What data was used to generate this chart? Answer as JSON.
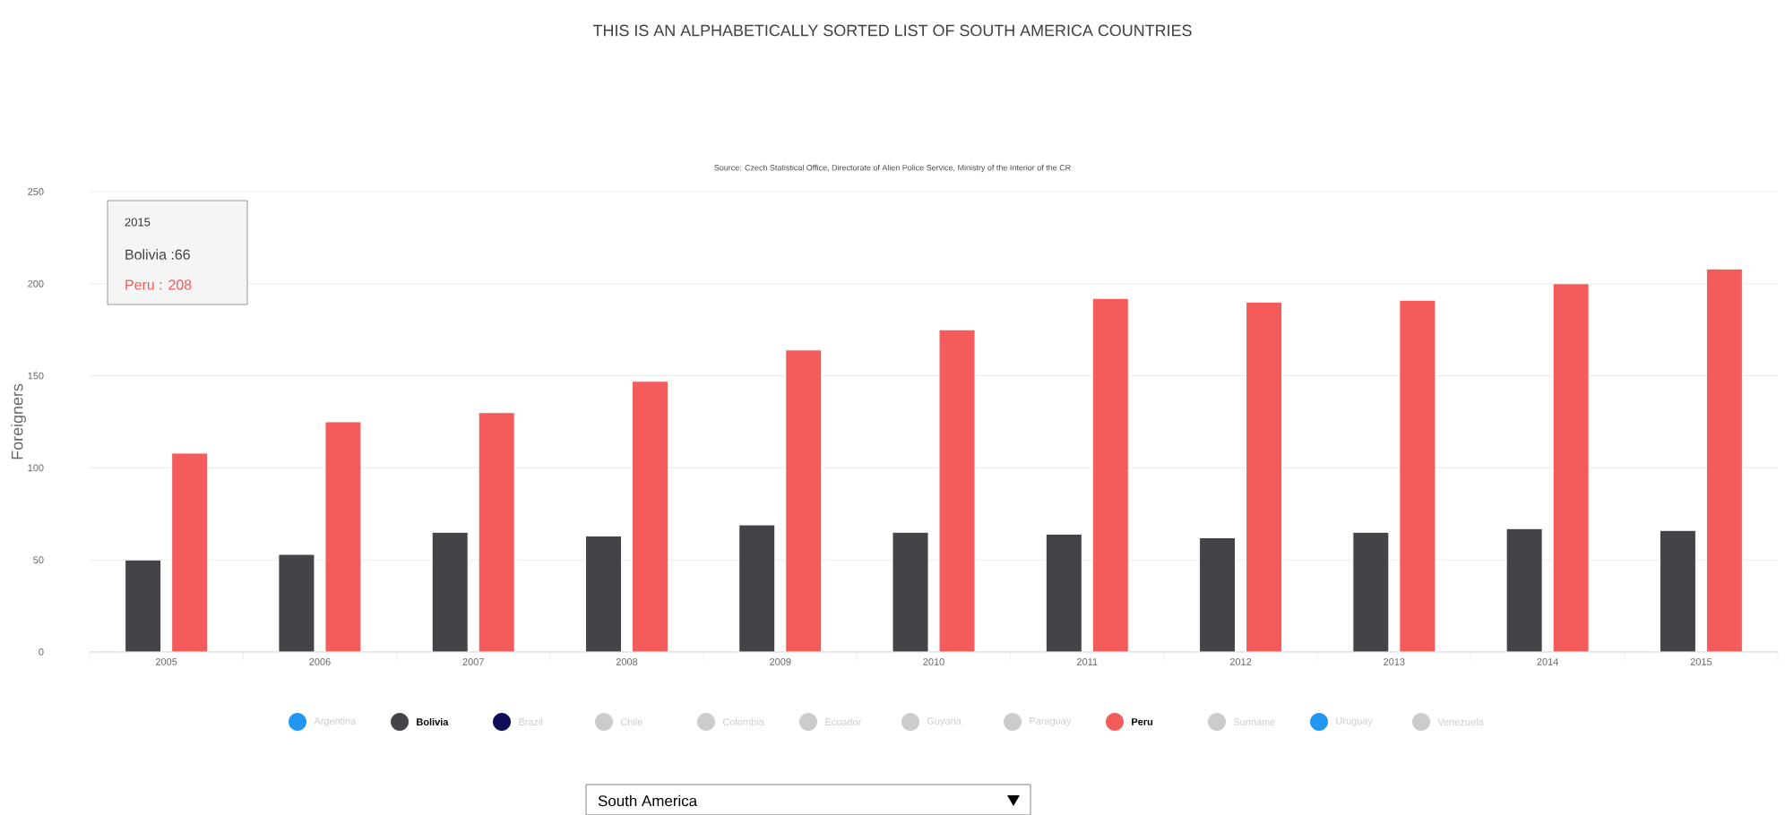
{
  "chart_data": {
    "type": "bar",
    "title": "THIS IS AN ALPHABETICALLY SORTED LIST OF SOUTH AMERICA COUNTRIES",
    "ylabel": "Foreigners",
    "categories": [
      "2005",
      "2006",
      "2007",
      "2008",
      "2009",
      "2010",
      "2011",
      "2012",
      "2013",
      "2014",
      "2015"
    ],
    "series": [
      {
        "name": "Argentina",
        "color": "#2196f3",
        "values": [
          null,
          null,
          null,
          null,
          null,
          null,
          null,
          null,
          null,
          null,
          null
        ]
      },
      {
        "name": "Bolivia",
        "color": "#434348",
        "values": [
          50,
          53,
          65,
          63,
          69,
          65,
          64,
          62,
          65,
          67,
          66
        ]
      },
      {
        "name": "Brazil",
        "color": "#0d0d5a",
        "values": [
          null,
          null,
          null,
          null,
          null,
          null,
          null,
          null,
          null,
          null,
          null
        ]
      },
      {
        "name": "Chile",
        "color": "#cccccc",
        "values": [
          null,
          null,
          null,
          null,
          null,
          null,
          null,
          null,
          null,
          null,
          null
        ]
      },
      {
        "name": "Colombia",
        "color": "#cccccc",
        "values": [
          null,
          null,
          null,
          null,
          null,
          null,
          null,
          null,
          null,
          null,
          null
        ]
      },
      {
        "name": "Ecuador",
        "color": "#cccccc",
        "values": [
          null,
          null,
          null,
          null,
          null,
          null,
          null,
          null,
          null,
          null,
          null
        ]
      },
      {
        "name": "Guyana",
        "color": "#cccccc",
        "values": [
          null,
          null,
          null,
          null,
          null,
          null,
          null,
          null,
          null,
          null,
          null
        ]
      },
      {
        "name": "Paraguay",
        "color": "#cccccc",
        "values": [
          null,
          null,
          null,
          null,
          null,
          null,
          null,
          null,
          null,
          null,
          null
        ]
      },
      {
        "name": "Peru",
        "color": "#f45b5b",
        "values": [
          108,
          125,
          130,
          147,
          164,
          175,
          192,
          190,
          191,
          200,
          208
        ]
      },
      {
        "name": "Suriname",
        "color": "#cccccc",
        "values": [
          null,
          null,
          null,
          null,
          null,
          null,
          null,
          null,
          null,
          null,
          null
        ]
      },
      {
        "name": "Uruguay",
        "color": "#2196f3",
        "values": [
          null,
          null,
          null,
          null,
          null,
          null,
          null,
          null,
          null,
          null,
          null
        ]
      },
      {
        "name": "Venezuela",
        "color": "#cccccc",
        "values": [
          null,
          null,
          null,
          null,
          null,
          null,
          null,
          null,
          null,
          null,
          null
        ]
      }
    ],
    "ylim": [
      0,
      250
    ],
    "yticks": [
      0,
      50,
      100,
      150,
      200,
      250
    ],
    "grid": "y",
    "legend": "bottom",
    "annotations": [
      "Source: Czech Statistical Office, Directorate of Alien Police Service, Ministry of the Interior of the CR",
      "2015",
      "Bolivia :66",
      "Peru :  208",
      "South America"
    ]
  }
}
